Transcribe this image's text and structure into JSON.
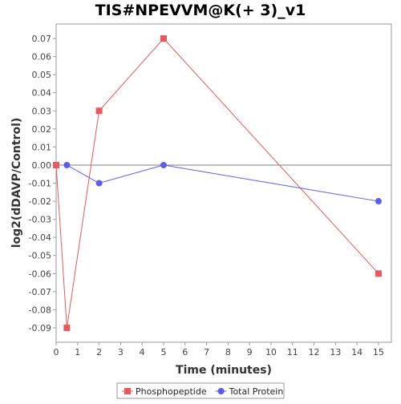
{
  "chart_data": {
    "type": "line",
    "title": "TIS#NPEVVM@K(+ 3)_v1",
    "xlabel": "Time (minutes)",
    "ylabel": "log2(dDAVP/Control)",
    "xlim": [
      0,
      15.6
    ],
    "ylim": [
      -0.098,
      0.078
    ],
    "xticks": [
      0,
      1,
      2,
      3,
      4,
      5,
      6,
      7,
      8,
      9,
      10,
      11,
      12,
      13,
      14,
      15
    ],
    "yticks": [
      0.07,
      0.06,
      0.05,
      0.04,
      0.03,
      0.02,
      0.01,
      0.0,
      -0.01,
      -0.02,
      -0.03,
      -0.04,
      -0.05,
      -0.06,
      -0.07,
      -0.08,
      -0.09
    ],
    "ytick_labels": [
      "0.07",
      "0.06",
      "0.05",
      "0.04",
      "0.03",
      "0.02",
      "0.01",
      "0.00",
      "-0.01",
      "-0.02",
      "-0.03",
      "-0.04",
      "-0.05",
      "-0.06",
      "-0.07",
      "-0.08",
      "-0.09"
    ],
    "grid": false,
    "zero_line": true,
    "legend_position": "bottom",
    "series": [
      {
        "name": "Phosphopeptide",
        "color": "#e8595b",
        "marker": "square",
        "x": [
          0,
          0.5,
          2,
          5,
          15
        ],
        "y": [
          0.0,
          -0.09,
          0.03,
          0.07,
          -0.06
        ]
      },
      {
        "name": "Total Protein",
        "color": "#5b5bef",
        "marker": "circle",
        "x": [
          0.5,
          2,
          5,
          15
        ],
        "y": [
          0.0,
          -0.01,
          0.0,
          -0.02
        ]
      }
    ]
  }
}
